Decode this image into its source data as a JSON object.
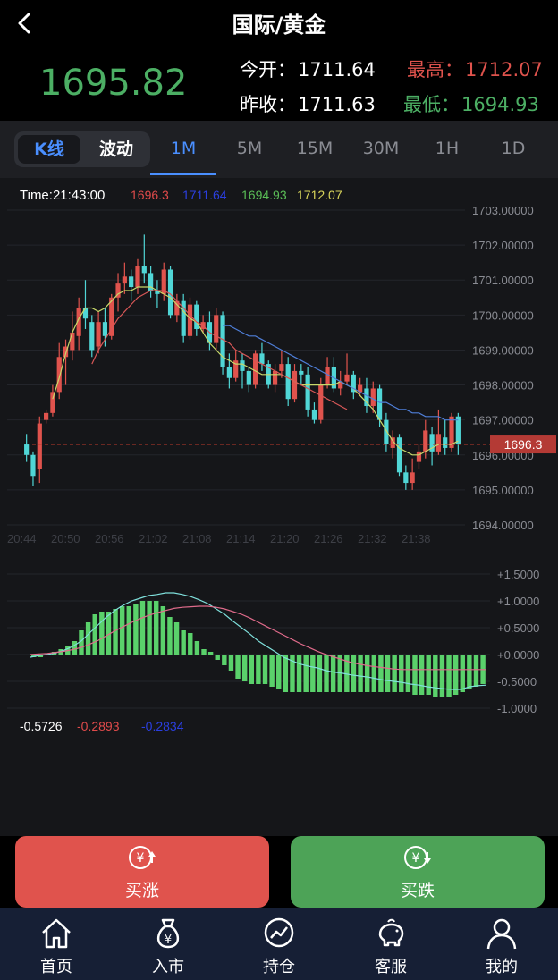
{
  "header": {
    "title": "国际/黄金"
  },
  "quote": {
    "last": "1695.82",
    "open_label": "今开：",
    "open": "1711.64",
    "prev_close_label": "昨收：",
    "prev_close": "1711.63",
    "high_label": "最高：",
    "high": "1712.07",
    "low_label": "最低：",
    "low": "1694.93"
  },
  "tabs": {
    "segment": [
      "K线",
      "波动"
    ],
    "timeframes": [
      "1M",
      "5M",
      "15M",
      "30M",
      "1H",
      "1D"
    ],
    "active_timeframe": "1M"
  },
  "chart_data": {
    "type": "candlestick",
    "info_line": {
      "time": "Time:21:43:00",
      "v1": "1696.3",
      "v2": "1711.64",
      "v3": "1694.93",
      "v4": "1712.07"
    },
    "y_ticks": [
      "1703.00000",
      "1702.00000",
      "1701.00000",
      "1700.00000",
      "1699.00000",
      "1698.00000",
      "1697.00000",
      "1696.00000",
      "1695.00000",
      "1694.00000"
    ],
    "x_ticks": [
      "20:44",
      "20:50",
      "20:56",
      "21:02",
      "21:08",
      "21:14",
      "21:20",
      "21:26",
      "21:32",
      "21:38"
    ],
    "current_price_tag": "1696.3",
    "current_price": 1696.3,
    "ylim": [
      1694.0,
      1703.0
    ],
    "candles": [
      [
        1696.3,
        1696.0,
        1696.6,
        1695.8
      ],
      [
        1696.0,
        1695.4,
        1696.1,
        1695.1
      ],
      [
        1695.6,
        1696.9,
        1697.1,
        1695.2
      ],
      [
        1697.0,
        1697.2,
        1697.3,
        1696.9
      ],
      [
        1697.2,
        1697.8,
        1698.0,
        1697.1
      ],
      [
        1697.8,
        1698.8,
        1699.2,
        1697.6
      ],
      [
        1698.8,
        1699.1,
        1699.3,
        1698.0
      ],
      [
        1699.0,
        1699.5,
        1700.1,
        1698.7
      ],
      [
        1699.4,
        1700.2,
        1700.5,
        1699.0
      ],
      [
        1700.2,
        1699.9,
        1701.0,
        1699.6
      ],
      [
        1699.8,
        1699.0,
        1700.0,
        1698.8
      ],
      [
        1699.1,
        1699.8,
        1700.1,
        1698.9
      ],
      [
        1699.8,
        1699.4,
        1700.2,
        1699.1
      ],
      [
        1699.4,
        1700.5,
        1700.6,
        1699.3
      ],
      [
        1700.5,
        1700.9,
        1701.2,
        1700.1
      ],
      [
        1700.9,
        1701.1,
        1701.5,
        1700.6
      ],
      [
        1701.1,
        1700.8,
        1701.3,
        1700.4
      ],
      [
        1700.8,
        1701.4,
        1701.6,
        1700.6
      ],
      [
        1701.4,
        1701.2,
        1702.3,
        1700.9
      ],
      [
        1701.2,
        1700.7,
        1701.4,
        1700.5
      ],
      [
        1700.7,
        1700.6,
        1701.0,
        1700.2
      ],
      [
        1700.6,
        1701.3,
        1701.5,
        1700.4
      ],
      [
        1701.3,
        1700.0,
        1701.4,
        1699.9
      ],
      [
        1700.0,
        1700.4,
        1700.6,
        1699.8
      ],
      [
        1700.4,
        1699.4,
        1700.6,
        1699.2
      ],
      [
        1699.4,
        1700.3,
        1700.5,
        1699.3
      ],
      [
        1700.3,
        1699.6,
        1700.4,
        1699.4
      ],
      [
        1699.6,
        1699.8,
        1700.0,
        1699.5
      ],
      [
        1699.8,
        1699.2,
        1700.1,
        1699.0
      ],
      [
        1699.2,
        1700.0,
        1700.2,
        1699.0
      ],
      [
        1700.0,
        1698.5,
        1700.1,
        1698.3
      ],
      [
        1698.5,
        1698.2,
        1698.9,
        1697.9
      ],
      [
        1698.2,
        1698.7,
        1699.0,
        1698.1
      ],
      [
        1698.7,
        1698.4,
        1698.9,
        1697.9
      ],
      [
        1698.4,
        1698.0,
        1698.5,
        1697.8
      ],
      [
        1698.0,
        1698.9,
        1699.0,
        1697.9
      ],
      [
        1698.9,
        1698.6,
        1699.2,
        1698.4
      ],
      [
        1698.6,
        1698.0,
        1698.7,
        1697.9
      ],
      [
        1698.0,
        1698.4,
        1698.6,
        1697.8
      ],
      [
        1698.4,
        1698.6,
        1699.0,
        1698.2
      ],
      [
        1698.6,
        1697.6,
        1698.8,
        1697.4
      ],
      [
        1697.6,
        1698.4,
        1698.6,
        1697.5
      ],
      [
        1698.4,
        1698.3,
        1698.6,
        1698.0
      ],
      [
        1698.3,
        1697.3,
        1698.5,
        1697.1
      ],
      [
        1697.3,
        1697.0,
        1697.5,
        1696.9
      ],
      [
        1697.0,
        1698.0,
        1698.2,
        1696.9
      ],
      [
        1698.0,
        1698.5,
        1698.8,
        1697.9
      ],
      [
        1698.5,
        1697.9,
        1698.8,
        1697.8
      ],
      [
        1697.9,
        1698.1,
        1698.4,
        1697.7
      ],
      [
        1698.1,
        1698.3,
        1698.9,
        1698.0
      ],
      [
        1698.3,
        1697.8,
        1698.4,
        1697.6
      ],
      [
        1697.8,
        1698.0,
        1698.2,
        1697.7
      ],
      [
        1697.9,
        1697.4,
        1698.2,
        1697.2
      ],
      [
        1697.4,
        1697.9,
        1698.1,
        1697.2
      ],
      [
        1697.9,
        1697.0,
        1698.0,
        1696.8
      ],
      [
        1697.0,
        1696.3,
        1697.2,
        1696.1
      ],
      [
        1696.2,
        1696.5,
        1696.7,
        1695.9
      ],
      [
        1696.5,
        1695.5,
        1696.6,
        1695.4
      ],
      [
        1695.5,
        1695.2,
        1695.7,
        1695.0
      ],
      [
        1695.2,
        1695.5,
        1695.9,
        1695.0
      ],
      [
        1695.8,
        1696.1,
        1696.3,
        1695.6
      ],
      [
        1696.1,
        1696.7,
        1697.0,
        1695.9
      ],
      [
        1696.6,
        1696.1,
        1696.8,
        1695.7
      ],
      [
        1696.1,
        1696.6,
        1697.3,
        1696.0
      ],
      [
        1696.5,
        1696.2,
        1697.0,
        1696.0
      ],
      [
        1696.2,
        1697.1,
        1697.2,
        1696.1
      ],
      [
        1697.1,
        1696.3,
        1697.2,
        1696.0
      ]
    ],
    "ma_series": [
      {
        "color": "#c8d96a",
        "values": [
          null,
          null,
          null,
          null,
          1697.6,
          1698.2,
          1698.9,
          1699.5,
          1699.9,
          1700.2,
          1700.2,
          1700.1,
          1700.2,
          1700.4,
          1700.6,
          1700.7,
          1700.7,
          1700.8,
          1700.8,
          1700.8,
          1700.7,
          1700.6,
          1700.5,
          1700.3,
          1700.1,
          1699.9,
          1699.8,
          1699.5,
          1699.2,
          1699.0,
          1698.8,
          1698.7,
          1698.6,
          1698.6,
          1698.5,
          1698.4,
          1698.3,
          1698.3,
          1698.3,
          1698.3,
          1698.2,
          1698.1,
          1698.0,
          1698.0,
          1698.0,
          1698.0,
          1698.0,
          1698.0,
          1698.1,
          1698.0,
          1697.9,
          1697.7,
          1697.5,
          1697.3,
          1697.0,
          1696.7,
          1696.4,
          1696.2,
          1696.1,
          1696.0,
          1696.0,
          1696.1,
          1696.2,
          1696.3,
          1696.3,
          1696.3,
          1696.4
        ]
      },
      {
        "color": "#d75757",
        "values": [
          null,
          null,
          null,
          null,
          null,
          null,
          null,
          null,
          null,
          null,
          1698.6,
          1699.0,
          1699.3,
          1699.6,
          1699.9,
          1700.1,
          1700.3,
          1700.5,
          1700.6,
          1700.7,
          1700.7,
          1700.7,
          1700.6,
          1700.4,
          1700.2,
          1700.0,
          1699.8,
          1699.7,
          1699.5,
          1699.4,
          1699.3,
          1699.2,
          1699.0,
          1698.9,
          1698.8,
          1698.7,
          1698.6,
          1698.5,
          1698.4,
          1698.3,
          1698.2,
          1698.1,
          1698.0,
          1697.9,
          1697.8,
          1697.7,
          1697.6,
          1697.5,
          1697.4,
          1697.3
        ]
      },
      {
        "color": "#4f7fd9",
        "values": [
          null,
          null,
          null,
          null,
          null,
          null,
          null,
          null,
          null,
          null,
          null,
          null,
          null,
          null,
          null,
          null,
          null,
          null,
          null,
          null,
          null,
          null,
          null,
          null,
          null,
          null,
          null,
          null,
          null,
          null,
          1699.7,
          1699.7,
          1699.6,
          1699.5,
          1699.4,
          1699.4,
          1699.3,
          1699.2,
          1699.1,
          1699.0,
          1698.9,
          1698.8,
          1698.7,
          1698.6,
          1698.5,
          1698.4,
          1698.3,
          1698.2,
          1698.1,
          1698.0,
          1697.9,
          1697.8,
          1697.7,
          1697.6,
          1697.5,
          1697.5,
          1697.4,
          1697.3,
          1697.3,
          1697.2,
          1697.2,
          1697.1,
          1697.1,
          1697.1,
          1697.0,
          1697.0,
          1697.0
        ]
      }
    ],
    "macd": {
      "y_ticks": [
        "+1.5000",
        "+1.0000",
        "+0.5000",
        "+0.0000",
        "-0.5000",
        "-1.0000"
      ],
      "ylim": [
        -1.0,
        1.5
      ],
      "readout": [
        "-0.5726",
        "-0.2893",
        "-0.2834"
      ],
      "readout_colors": [
        "#ffffff",
        "#e04b4b",
        "#2b3fe0"
      ],
      "hist": [
        -0.05,
        -0.05,
        0.0,
        0.05,
        0.1,
        0.15,
        0.25,
        0.45,
        0.6,
        0.75,
        0.8,
        0.8,
        0.85,
        0.9,
        0.9,
        0.95,
        1.0,
        1.0,
        1.0,
        0.9,
        0.7,
        0.6,
        0.45,
        0.4,
        0.25,
        0.1,
        0.05,
        -0.1,
        -0.2,
        -0.3,
        -0.45,
        -0.5,
        -0.55,
        -0.55,
        -0.55,
        -0.6,
        -0.65,
        -0.7,
        -0.7,
        -0.7,
        -0.7,
        -0.7,
        -0.7,
        -0.7,
        -0.7,
        -0.7,
        -0.7,
        -0.7,
        -0.7,
        -0.7,
        -0.7,
        -0.7,
        -0.7,
        -0.7,
        -0.7,
        -0.7,
        -0.75,
        -0.75,
        -0.75,
        -0.8,
        -0.8,
        -0.8,
        -0.75,
        -0.7,
        -0.65,
        -0.6,
        -0.55
      ],
      "dif": [
        -0.05,
        -0.02,
        0.0,
        0.03,
        0.08,
        0.15,
        0.25,
        0.4,
        0.55,
        0.7,
        0.82,
        0.92,
        1.0,
        1.05,
        1.1,
        1.12,
        1.15,
        1.15,
        1.12,
        1.08,
        1.02,
        0.95,
        0.85,
        0.75,
        0.62,
        0.5,
        0.38,
        0.25,
        0.15,
        0.05,
        -0.05,
        -0.12,
        -0.18,
        -0.22,
        -0.25,
        -0.3,
        -0.33,
        -0.35,
        -0.38,
        -0.4,
        -0.42,
        -0.45,
        -0.48,
        -0.5,
        -0.52,
        -0.55,
        -0.57,
        -0.6,
        -0.62,
        -0.64,
        -0.65,
        -0.65,
        -0.6,
        -0.58,
        -0.57
      ],
      "dea": [
        0.0,
        0.01,
        0.02,
        0.04,
        0.06,
        0.09,
        0.13,
        0.19,
        0.26,
        0.35,
        0.44,
        0.52,
        0.6,
        0.67,
        0.73,
        0.78,
        0.82,
        0.86,
        0.88,
        0.89,
        0.9,
        0.9,
        0.88,
        0.85,
        0.8,
        0.75,
        0.68,
        0.6,
        0.52,
        0.44,
        0.36,
        0.28,
        0.2,
        0.13,
        0.06,
        0.0,
        -0.05,
        -0.1,
        -0.15,
        -0.18,
        -0.21,
        -0.23,
        -0.25,
        -0.27,
        -0.28,
        -0.28,
        -0.28,
        -0.28,
        -0.28,
        -0.28,
        -0.28,
        -0.28,
        -0.28,
        -0.28,
        -0.28
      ]
    }
  },
  "actions": {
    "buy_up": "买涨",
    "buy_down": "买跌"
  },
  "nav": [
    "首页",
    "入市",
    "持仓",
    "客服",
    "我的"
  ],
  "colors": {
    "up": "#e0534d",
    "down": "#50d6d6",
    "accent": "#4a8fff",
    "macd_hist": "#5ad16b"
  }
}
